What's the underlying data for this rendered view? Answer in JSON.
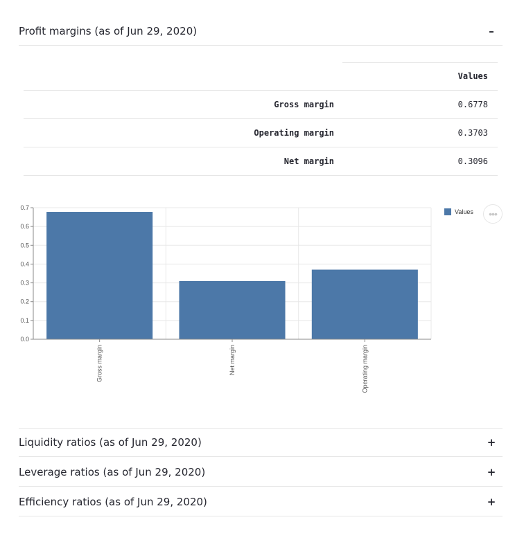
{
  "sections": {
    "profit": {
      "title": "Profit margins (as of Jun 29, 2020)",
      "toggle": "–"
    },
    "liquidity": {
      "title": "Liquidity ratios (as of Jun 29, 2020)",
      "toggle": "+"
    },
    "leverage": {
      "title": "Leverage ratios (as of Jun 29, 2020)",
      "toggle": "+"
    },
    "efficiency": {
      "title": "Efficiency ratios (as of Jun 29, 2020)",
      "toggle": "+"
    }
  },
  "table": {
    "column_header": "Values",
    "rows": [
      {
        "label": "Gross margin",
        "value": "0.6778"
      },
      {
        "label": "Operating margin",
        "value": "0.3703"
      },
      {
        "label": "Net margin",
        "value": "0.3096"
      }
    ]
  },
  "chart_data": {
    "type": "bar",
    "categories": [
      "Gross margin",
      "Net margin",
      "Operating margin"
    ],
    "values": [
      0.6778,
      0.3096,
      0.3703
    ],
    "series": [
      {
        "name": "Values",
        "values": [
          0.6778,
          0.3096,
          0.3703
        ]
      }
    ],
    "ylim": [
      0,
      0.7
    ],
    "yticks": [
      "0.0",
      "0.1",
      "0.2",
      "0.3",
      "0.4",
      "0.5",
      "0.6",
      "0.7"
    ],
    "grid": true,
    "legend": "top-right",
    "color": "#4c78a8"
  },
  "menu_icon": "ellipsis-icon",
  "menu_glyph": "•••"
}
